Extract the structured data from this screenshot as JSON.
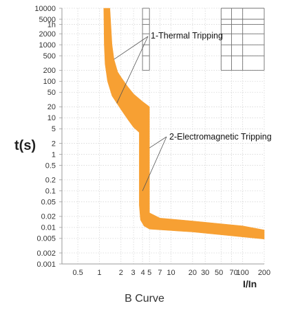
{
  "chart_data": {
    "type": "area",
    "title": "B Curve",
    "xlabel": "I/In",
    "ylabel": "t(s)",
    "x_scale": "log",
    "y_scale": "log",
    "xlim": [
      0.3,
      200
    ],
    "ylim": [
      0.001,
      10000
    ],
    "x_ticks": [
      {
        "value": 0.5,
        "label": "0.5"
      },
      {
        "value": 1,
        "label": "1"
      },
      {
        "value": 2,
        "label": "2"
      },
      {
        "value": 3,
        "label": "3"
      },
      {
        "value": 4,
        "label": "4"
      },
      {
        "value": 5,
        "label": "5"
      },
      {
        "value": 7,
        "label": "7"
      },
      {
        "value": 10,
        "label": "10"
      },
      {
        "value": 20,
        "label": "20"
      },
      {
        "value": 30,
        "label": "30"
      },
      {
        "value": 50,
        "label": "50"
      },
      {
        "value": 70,
        "label": "70"
      },
      {
        "value": 100,
        "label": "100"
      },
      {
        "value": 200,
        "label": "200"
      }
    ],
    "y_ticks": [
      {
        "value": 10000,
        "label": "10000"
      },
      {
        "value": 5000,
        "label": "5000"
      },
      {
        "value": 3600,
        "label": "1h"
      },
      {
        "value": 2000,
        "label": "2000"
      },
      {
        "value": 1000,
        "label": "1000"
      },
      {
        "value": 500,
        "label": "500"
      },
      {
        "value": 200,
        "label": "200"
      },
      {
        "value": 100,
        "label": "100"
      },
      {
        "value": 50,
        "label": "50"
      },
      {
        "value": 20,
        "label": "20"
      },
      {
        "value": 10,
        "label": "10"
      },
      {
        "value": 5,
        "label": "5"
      },
      {
        "value": 2,
        "label": "2"
      },
      {
        "value": 1,
        "label": "1"
      },
      {
        "value": 0.5,
        "label": "0.5"
      },
      {
        "value": 0.2,
        "label": "0.2"
      },
      {
        "value": 0.1,
        "label": "0.1"
      },
      {
        "value": 0.05,
        "label": "0.05"
      },
      {
        "value": 0.02,
        "label": "0.02"
      },
      {
        "value": 0.01,
        "label": "0.01"
      },
      {
        "value": 0.005,
        "label": "0.005"
      },
      {
        "value": 0.002,
        "label": "0.002"
      },
      {
        "value": 0.001,
        "label": "0.001"
      }
    ],
    "band": {
      "color": "#f7a033",
      "upper": [
        {
          "x": 1.4,
          "y": 10000
        },
        {
          "x": 1.5,
          "y": 1000
        },
        {
          "x": 1.6,
          "y": 400
        },
        {
          "x": 1.8,
          "y": 180
        },
        {
          "x": 2.0,
          "y": 130
        },
        {
          "x": 2.5,
          "y": 70
        },
        {
          "x": 3.0,
          "y": 45
        },
        {
          "x": 4.0,
          "y": 28
        },
        {
          "x": 5.0,
          "y": 20
        },
        {
          "x": 5.0,
          "y": 0.025
        },
        {
          "x": 7.0,
          "y": 0.018
        },
        {
          "x": 20,
          "y": 0.015
        },
        {
          "x": 100,
          "y": 0.011
        },
        {
          "x": 200,
          "y": 0.0085
        }
      ],
      "lower": [
        {
          "x": 1.15,
          "y": 10000
        },
        {
          "x": 1.17,
          "y": 1000
        },
        {
          "x": 1.2,
          "y": 300
        },
        {
          "x": 1.3,
          "y": 100
        },
        {
          "x": 1.5,
          "y": 40
        },
        {
          "x": 2.0,
          "y": 17
        },
        {
          "x": 2.5,
          "y": 9
        },
        {
          "x": 3.0,
          "y": 5.5
        },
        {
          "x": 3.6,
          "y": 4
        },
        {
          "x": 3.6,
          "y": 0.04
        },
        {
          "x": 3.75,
          "y": 0.016
        },
        {
          "x": 4.2,
          "y": 0.011
        },
        {
          "x": 5.0,
          "y": 0.009
        },
        {
          "x": 20,
          "y": 0.0075
        },
        {
          "x": 100,
          "y": 0.0055
        },
        {
          "x": 200,
          "y": 0.0048
        }
      ]
    },
    "boxes": [
      {
        "x": [
          4,
          5
        ],
        "y": [
          200,
          10000
        ]
      },
      {
        "x": [
          50,
          200
        ],
        "y": [
          200,
          10000
        ]
      }
    ],
    "annotations": [
      {
        "text": "1-Thermal Tripping",
        "targets": [
          {
            "x": 1.6,
            "y": 400
          },
          {
            "x": 1.75,
            "y": 25
          }
        ]
      },
      {
        "text": "2-Electromagnetic Tripping",
        "targets": [
          {
            "x": 5.0,
            "y": 1.5
          },
          {
            "x": 4.0,
            "y": 0.1
          }
        ]
      }
    ],
    "grid": true
  }
}
